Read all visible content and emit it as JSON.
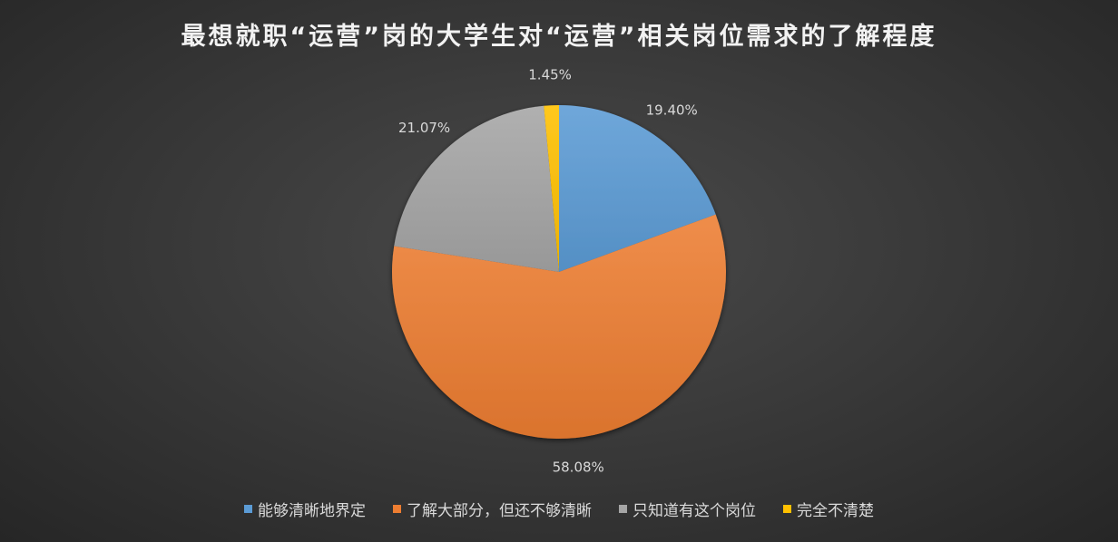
{
  "chart_data": {
    "type": "pie",
    "title": "最想就职“运营”岗的大学生对“运营”相关岗位需求的了解程度",
    "categories": [
      "能够清晰地界定",
      "了解大部分，但还不够清晰",
      "只知道有这个岗位",
      "完全不清楚"
    ],
    "values": [
      19.4,
      58.08,
      21.07,
      1.45
    ],
    "value_labels": [
      "19.40%",
      "58.08%",
      "21.07%",
      "1.45%"
    ],
    "colors": [
      "#5b9bd5",
      "#ed7d31",
      "#a5a5a5",
      "#ffc000"
    ],
    "start_angle_deg": 0,
    "direction": "clockwise",
    "legend_position": "bottom"
  }
}
